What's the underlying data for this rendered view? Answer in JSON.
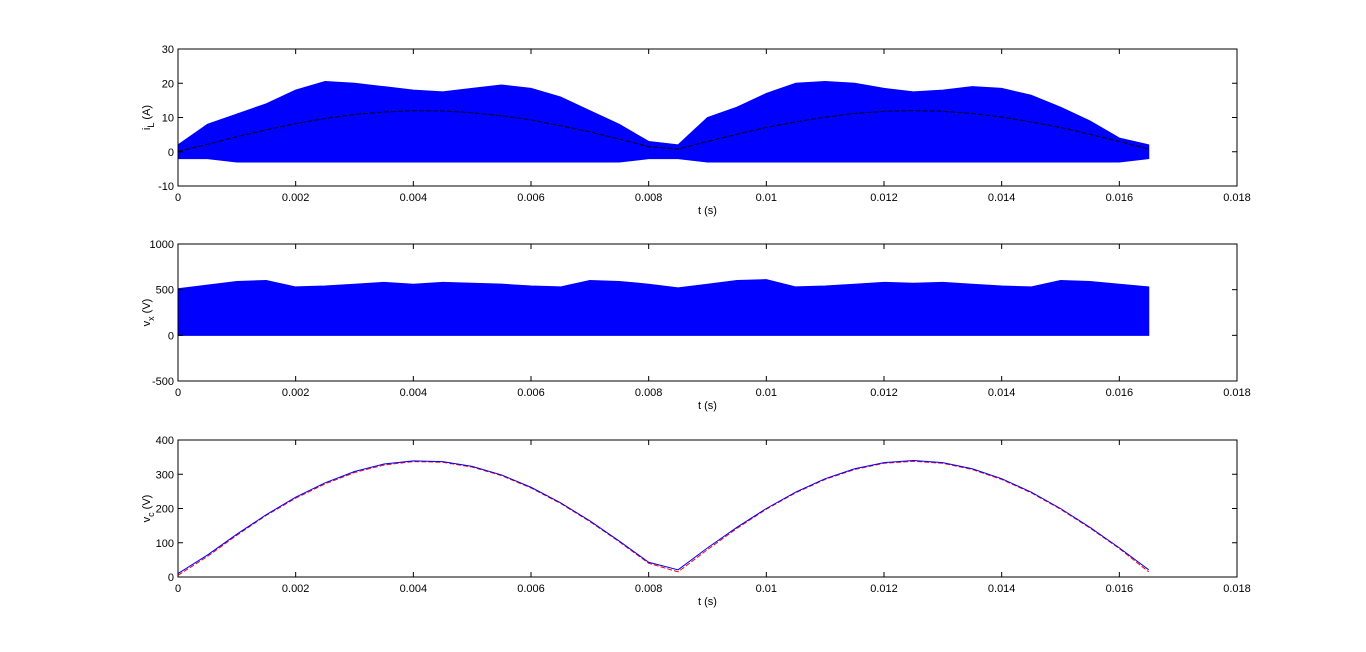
{
  "chart_data": [
    {
      "type": "line",
      "xlabel": "t (s)",
      "ylabel": [
        "i",
        "L",
        "(A)"
      ],
      "xlim": [
        0,
        0.018
      ],
      "xticks": [
        0,
        0.002,
        0.004,
        0.006,
        0.008,
        0.01,
        0.012,
        0.014,
        0.016,
        0.018
      ],
      "ylim": [
        -10,
        30
      ],
      "yticks": [
        -10,
        0,
        10,
        20,
        30
      ],
      "x": [
        0,
        0.0005,
        0.001,
        0.0015,
        0.002,
        0.0025,
        0.003,
        0.0035,
        0.004,
        0.0045,
        0.005,
        0.0055,
        0.006,
        0.0065,
        0.007,
        0.0075,
        0.008,
        0.0085,
        0.009,
        0.0095,
        0.01,
        0.0105,
        0.011,
        0.0115,
        0.012,
        0.0125,
        0.013,
        0.0135,
        0.014,
        0.0145,
        0.015,
        0.0155,
        0.016,
        0.0165
      ],
      "band": {
        "color": "#0000ff",
        "upper": [
          2,
          8,
          11,
          14,
          18,
          20.5,
          20,
          19,
          18,
          17.5,
          18.5,
          19.5,
          18.5,
          16,
          12,
          8,
          3,
          2,
          10,
          13,
          17,
          20,
          20.5,
          20,
          18.5,
          17.5,
          18,
          19,
          18.5,
          16.5,
          13,
          9,
          4,
          2
        ],
        "lower": [
          -2,
          -2,
          -3,
          -3,
          -3,
          -3,
          -3,
          -3,
          -3,
          -3,
          -3,
          -3,
          -3,
          -3,
          -3,
          -3,
          -2,
          -2,
          -3,
          -3,
          -3,
          -3,
          -3,
          -3,
          -3,
          -3,
          -3,
          -3,
          -3,
          -3,
          -3,
          -3,
          -3,
          -2
        ]
      },
      "series": [
        {
          "color": "#000000",
          "dash": true,
          "values": [
            0,
            2.2,
            4.4,
            6.4,
            8.2,
            9.7,
            10.9,
            11.6,
            12,
            11.9,
            11.4,
            10.5,
            9.3,
            7.6,
            5.8,
            3.7,
            1.5,
            0.8,
            3,
            5.1,
            7.1,
            8.7,
            10.1,
            11.2,
            11.8,
            12,
            11.8,
            11.2,
            10.1,
            8.7,
            7.1,
            5.1,
            3,
            0.8
          ]
        }
      ]
    },
    {
      "type": "line",
      "xlabel": "t (s)",
      "ylabel": [
        "v",
        "x",
        "(V)"
      ],
      "xlim": [
        0,
        0.018
      ],
      "xticks": [
        0,
        0.002,
        0.004,
        0.006,
        0.008,
        0.01,
        0.012,
        0.014,
        0.016,
        0.018
      ],
      "ylim": [
        -500,
        1000
      ],
      "yticks": [
        -500,
        0,
        500,
        1000
      ],
      "x": [
        0,
        0.0005,
        0.001,
        0.0015,
        0.002,
        0.0025,
        0.003,
        0.0035,
        0.004,
        0.0045,
        0.005,
        0.0055,
        0.006,
        0.0065,
        0.007,
        0.0075,
        0.008,
        0.0085,
        0.009,
        0.0095,
        0.01,
        0.0105,
        0.011,
        0.0115,
        0.012,
        0.0125,
        0.013,
        0.0135,
        0.014,
        0.0145,
        0.015,
        0.0155,
        0.016,
        0.0165
      ],
      "band": {
        "color": "#0000ff",
        "upper": [
          510,
          550,
          590,
          600,
          530,
          540,
          560,
          580,
          560,
          580,
          570,
          560,
          540,
          530,
          600,
          590,
          560,
          520,
          560,
          600,
          610,
          530,
          540,
          560,
          580,
          570,
          580,
          560,
          540,
          530,
          600,
          590,
          560,
          530
        ],
        "lower": [
          0,
          0,
          0,
          0,
          0,
          0,
          0,
          0,
          0,
          0,
          0,
          0,
          0,
          0,
          0,
          0,
          0,
          0,
          0,
          0,
          0,
          0,
          0,
          0,
          0,
          0,
          0,
          0,
          0,
          0,
          0,
          0,
          0,
          0
        ]
      },
      "series": []
    },
    {
      "type": "line",
      "xlabel": "t (s)",
      "ylabel": [
        "v",
        "c",
        "(V)"
      ],
      "xlim": [
        0,
        0.018
      ],
      "xticks": [
        0,
        0.002,
        0.004,
        0.006,
        0.008,
        0.01,
        0.012,
        0.014,
        0.016,
        0.018
      ],
      "ylim": [
        0,
        400
      ],
      "yticks": [
        0,
        100,
        200,
        300,
        400
      ],
      "x": [
        0,
        0.0005,
        0.001,
        0.0015,
        0.002,
        0.0025,
        0.003,
        0.0035,
        0.004,
        0.0045,
        0.005,
        0.0055,
        0.006,
        0.0065,
        0.007,
        0.0075,
        0.008,
        0.0085,
        0.009,
        0.0095,
        0.01,
        0.0105,
        0.011,
        0.0115,
        0.012,
        0.0125,
        0.013,
        0.0135,
        0.014,
        0.0145,
        0.015,
        0.0155,
        0.016,
        0.0165
      ],
      "series": [
        {
          "color": "#ff0000",
          "dash": true,
          "values": [
            5,
            60,
            122,
            180,
            230,
            272,
            305,
            327,
            337,
            335,
            321,
            296,
            260,
            215,
            162,
            103,
            40,
            15,
            80,
            142,
            198,
            246,
            285,
            314,
            332,
            338,
            332,
            314,
            285,
            246,
            198,
            143,
            83,
            15
          ]
        },
        {
          "color": "#0000ff",
          "dash": false,
          "values": [
            10,
            64,
            125,
            182,
            233,
            275,
            308,
            330,
            339,
            337,
            323,
            298,
            262,
            217,
            164,
            105,
            43,
            21,
            85,
            145,
            200,
            248,
            287,
            316,
            334,
            340,
            334,
            316,
            287,
            248,
            200,
            145,
            85,
            21
          ]
        }
      ]
    }
  ]
}
